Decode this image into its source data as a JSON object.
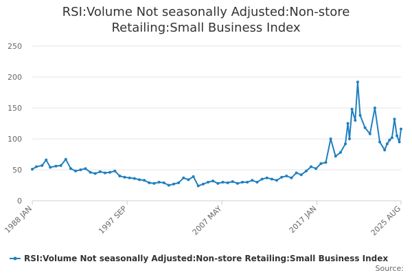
{
  "title_line1": "RSI:Volume Not seasonally Adjusted:Non-store",
  "title_line2": "Retailing:Small Business Index",
  "source_label": "Source:",
  "colors": {
    "series": "#1f7fbf",
    "grid": "#e6e6e6",
    "axis": "#cccccc",
    "text": "#333333"
  },
  "chart_data": {
    "type": "line",
    "title": "RSI:Volume Not seasonally Adjusted:Non-store Retailing:Small Business Index",
    "xlabel": "",
    "ylabel": "",
    "ylim": [
      0,
      250
    ],
    "yticks": [
      0,
      50,
      100,
      150,
      200,
      250
    ],
    "xlim": [
      "1988-01",
      "2025-08"
    ],
    "xticks": [
      {
        "label": "1988 JAN",
        "date": "1988-01"
      },
      {
        "label": "1997 SEP",
        "date": "1997-09"
      },
      {
        "label": "2007 MAY",
        "date": "2007-05"
      },
      {
        "label": "2017 JAN",
        "date": "2017-01"
      },
      {
        "label": "2025 AUG",
        "date": "2025-08"
      }
    ],
    "grid": true,
    "legend_position": "bottom",
    "series": [
      {
        "name": "RSI:Volume Not seasonally Adjusted:Non-store Retailing:Small Business Index",
        "x": [
          "1988-01",
          "1988-06",
          "1989-01",
          "1989-06",
          "1989-11",
          "1990-06",
          "1990-12",
          "1991-06",
          "1991-12",
          "1992-06",
          "1992-12",
          "1993-06",
          "1993-12",
          "1994-06",
          "1994-12",
          "1995-06",
          "1995-12",
          "1996-06",
          "1996-12",
          "1997-06",
          "1997-12",
          "1998-06",
          "1998-12",
          "1999-06",
          "1999-12",
          "2000-06",
          "2000-12",
          "2001-06",
          "2001-12",
          "2002-06",
          "2002-12",
          "2003-06",
          "2003-12",
          "2004-06",
          "2004-12",
          "2005-06",
          "2005-12",
          "2006-06",
          "2006-12",
          "2007-06",
          "2007-12",
          "2008-06",
          "2008-12",
          "2009-06",
          "2009-12",
          "2010-06",
          "2010-12",
          "2011-06",
          "2011-12",
          "2012-06",
          "2012-12",
          "2013-06",
          "2013-12",
          "2014-06",
          "2014-12",
          "2015-06",
          "2015-12",
          "2016-06",
          "2016-12",
          "2017-06",
          "2017-12",
          "2018-06",
          "2018-12",
          "2019-06",
          "2019-12",
          "2020-03",
          "2020-05",
          "2020-08",
          "2020-12",
          "2021-03",
          "2021-06",
          "2021-12",
          "2022-06",
          "2022-12",
          "2023-06",
          "2023-12",
          "2024-03",
          "2024-06",
          "2024-09",
          "2024-12",
          "2025-03",
          "2025-06",
          "2025-08"
        ],
        "values": [
          51,
          55,
          57,
          66,
          54,
          56,
          57,
          67,
          52,
          48,
          50,
          52,
          46,
          44,
          47,
          45,
          46,
          48,
          40,
          38,
          37,
          36,
          34,
          33,
          29,
          28,
          30,
          29,
          25,
          27,
          29,
          37,
          34,
          39,
          24,
          27,
          30,
          32,
          28,
          30,
          29,
          31,
          28,
          30,
          30,
          33,
          30,
          35,
          37,
          35,
          33,
          38,
          40,
          37,
          45,
          42,
          48,
          55,
          52,
          60,
          62,
          100,
          72,
          78,
          92,
          125,
          100,
          148,
          130,
          192,
          138,
          118,
          108,
          150,
          95,
          82,
          92,
          98,
          102,
          132,
          105,
          95,
          116
        ]
      }
    ]
  }
}
